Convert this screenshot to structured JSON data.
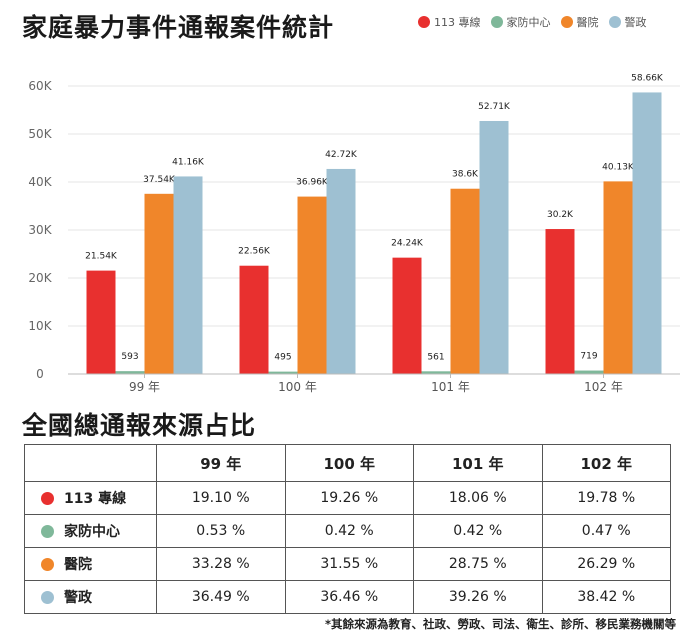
{
  "header": {
    "title": "家庭暴力事件通報案件統計"
  },
  "legend": [
    {
      "label": "113 專線",
      "color": "#e8302f"
    },
    {
      "label": "家防中心",
      "color": "#7fb89a"
    },
    {
      "label": "醫院",
      "color": "#f0862a"
    },
    {
      "label": "警政",
      "color": "#9ec0d2"
    }
  ],
  "chart_data": {
    "type": "bar",
    "categories": [
      "99 年",
      "100 年",
      "101 年",
      "102 年"
    ],
    "series": [
      {
        "name": "113 專線",
        "color": "#e8302f",
        "values": [
          21.54,
          22.56,
          24.24,
          30.2
        ],
        "labels": [
          "21.54K",
          "22.56K",
          "24.24K",
          "30.2K"
        ]
      },
      {
        "name": "家防中心",
        "color": "#7fb89a",
        "values": [
          0.593,
          0.495,
          0.561,
          0.719
        ],
        "labels": [
          "593",
          "495",
          "561",
          "719"
        ]
      },
      {
        "name": "醫院",
        "color": "#f0862a",
        "values": [
          37.54,
          36.96,
          38.6,
          40.13
        ],
        "labels": [
          "37.54K",
          "36.96K",
          "38.6K",
          "40.13K"
        ]
      },
      {
        "name": "警政",
        "color": "#9ec0d2",
        "values": [
          41.16,
          42.72,
          52.71,
          58.66
        ],
        "labels": [
          "41.16K",
          "42.72K",
          "52.71K",
          "58.66K"
        ]
      }
    ],
    "yticks": [
      0,
      10,
      20,
      30,
      40,
      50,
      60
    ],
    "ytick_labels": [
      "0",
      "10K",
      "20K",
      "30K",
      "40K",
      "50K",
      "60K"
    ],
    "ylim": [
      0,
      60
    ],
    "grid": true,
    "legend_position": "top-right"
  },
  "table": {
    "title": "全國總通報來源占比",
    "columns": [
      "99 年",
      "100 年",
      "101 年",
      "102 年"
    ],
    "rows": [
      {
        "source": "113 專線",
        "color": "#e8302f",
        "values": [
          "19.10 %",
          "19.26 %",
          "18.06 %",
          "19.78 %"
        ]
      },
      {
        "source": "家防中心",
        "color": "#7fb89a",
        "values": [
          "0.53 %",
          "0.42 %",
          "0.42 %",
          "0.47 %"
        ]
      },
      {
        "source": "醫院",
        "color": "#f0862a",
        "values": [
          "33.28 %",
          "31.55 %",
          "28.75 %",
          "26.29 %"
        ]
      },
      {
        "source": "警政",
        "color": "#9ec0d2",
        "values": [
          "36.49 %",
          "36.46 %",
          "39.26 %",
          "38.42 %"
        ]
      }
    ]
  },
  "footnote": "*其餘來源為教育、社政、勞政、司法、衛生、診所、移民業務機關等"
}
